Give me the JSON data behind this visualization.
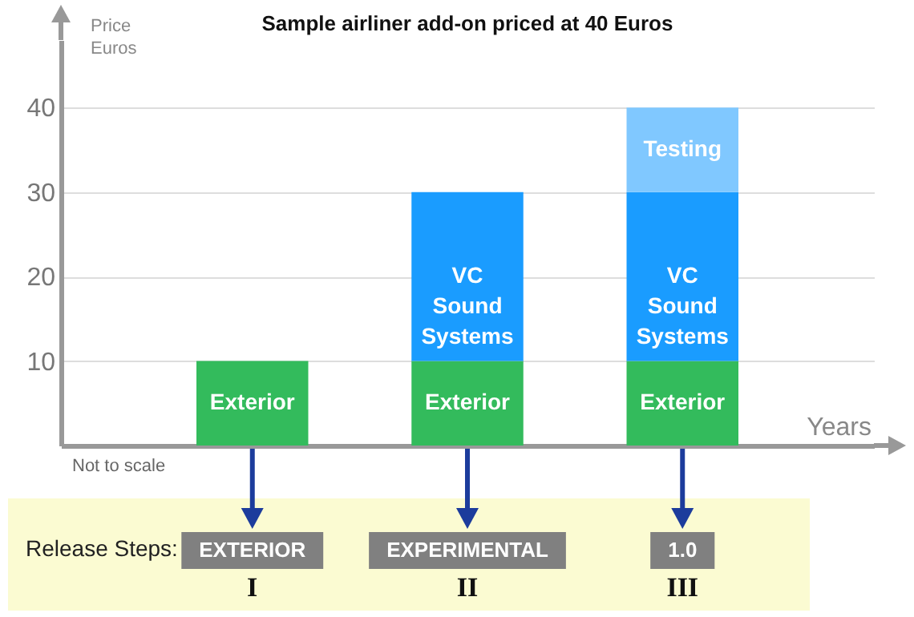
{
  "chart_data": {
    "type": "bar",
    "title": "Sample airliner add-on priced at 40 Euros",
    "xlabel": "Years",
    "ylabel": "Price Euros",
    "categories": [
      "EXTERIOR",
      "EXPERIMENTAL",
      "1.0"
    ],
    "series": [
      {
        "name": "Exterior",
        "color": "#33bb5c",
        "values": [
          10,
          10,
          10
        ]
      },
      {
        "name": "VC Sound Systems",
        "color": "#1a9cff",
        "values": [
          null,
          20,
          20
        ]
      },
      {
        "name": "Testing",
        "color": "#80c8ff",
        "values": [
          null,
          null,
          10
        ]
      }
    ],
    "stacked": true,
    "ylim": [
      0,
      48
    ],
    "yticks": [
      10,
      20,
      30,
      40
    ],
    "grid": "y",
    "annotations": [
      "Release Steps:",
      "Not to scale",
      "I",
      "II",
      "III"
    ]
  }
}
